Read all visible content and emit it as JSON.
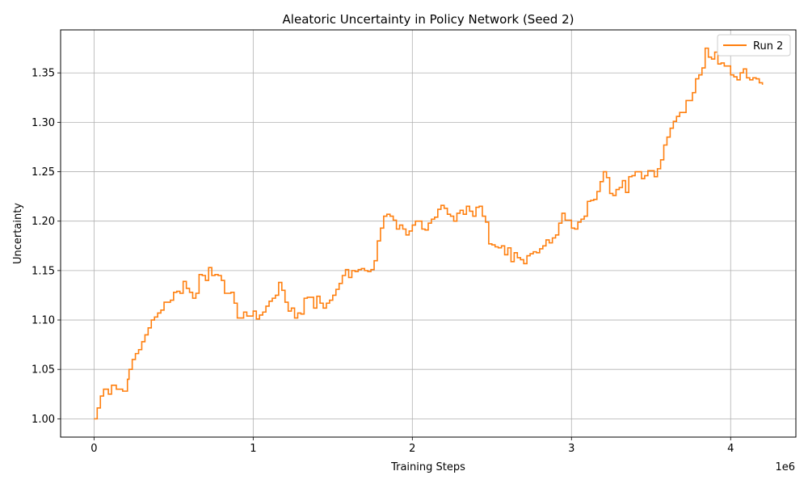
{
  "chart_data": {
    "type": "line",
    "title": "Aleatoric Uncertainty in Policy Network (Seed 2)",
    "xlabel": "Training Steps",
    "ylabel": "Uncertainty",
    "x_offset_label": "1e6",
    "xlim": [
      -210000,
      4410000
    ],
    "ylim": [
      0.9815,
      1.3935
    ],
    "x_ticks": [
      {
        "value": 0,
        "label": "0"
      },
      {
        "value": 1000000,
        "label": "1"
      },
      {
        "value": 2000000,
        "label": "2"
      },
      {
        "value": 3000000,
        "label": "3"
      },
      {
        "value": 4000000,
        "label": "4"
      }
    ],
    "y_ticks": [
      {
        "value": 1.0,
        "label": "1.00"
      },
      {
        "value": 1.05,
        "label": "1.05"
      },
      {
        "value": 1.1,
        "label": "1.10"
      },
      {
        "value": 1.15,
        "label": "1.15"
      },
      {
        "value": 1.2,
        "label": "1.20"
      },
      {
        "value": 1.25,
        "label": "1.25"
      },
      {
        "value": 1.3,
        "label": "1.30"
      },
      {
        "value": 1.35,
        "label": "1.35"
      }
    ],
    "grid": true,
    "legend_position": "top-right",
    "series": [
      {
        "name": "Run 2",
        "color": "#ff7f0e",
        "step": true,
        "x": [
          0,
          20000,
          40000,
          60000,
          90000,
          110000,
          140000,
          160000,
          180000,
          200000,
          210000,
          220000,
          240000,
          260000,
          280000,
          300000,
          320000,
          340000,
          360000,
          380000,
          400000,
          420000,
          440000,
          460000,
          480000,
          500000,
          520000,
          540000,
          560000,
          580000,
          600000,
          620000,
          640000,
          660000,
          680000,
          700000,
          720000,
          740000,
          760000,
          780000,
          800000,
          820000,
          840000,
          860000,
          880000,
          900000,
          940000,
          960000,
          980000,
          1000000,
          1020000,
          1040000,
          1060000,
          1080000,
          1100000,
          1120000,
          1140000,
          1160000,
          1180000,
          1200000,
          1220000,
          1240000,
          1260000,
          1280000,
          1300000,
          1320000,
          1340000,
          1380000,
          1400000,
          1420000,
          1440000,
          1460000,
          1480000,
          1500000,
          1520000,
          1540000,
          1560000,
          1580000,
          1600000,
          1620000,
          1640000,
          1660000,
          1680000,
          1700000,
          1720000,
          1740000,
          1760000,
          1780000,
          1800000,
          1820000,
          1840000,
          1860000,
          1880000,
          1900000,
          1920000,
          1940000,
          1960000,
          1980000,
          2000000,
          2020000,
          2060000,
          2080000,
          2100000,
          2120000,
          2140000,
          2160000,
          2180000,
          2200000,
          2220000,
          2240000,
          2260000,
          2280000,
          2300000,
          2320000,
          2340000,
          2360000,
          2380000,
          2400000,
          2420000,
          2440000,
          2460000,
          2480000,
          2500000,
          2520000,
          2540000,
          2560000,
          2580000,
          2600000,
          2620000,
          2640000,
          2660000,
          2680000,
          2700000,
          2720000,
          2740000,
          2760000,
          2780000,
          2800000,
          2820000,
          2840000,
          2860000,
          2880000,
          2900000,
          2920000,
          2940000,
          2960000,
          2980000,
          3000000,
          3020000,
          3040000,
          3060000,
          3080000,
          3100000,
          3120000,
          3140000,
          3160000,
          3180000,
          3200000,
          3220000,
          3240000,
          3260000,
          3280000,
          3300000,
          3320000,
          3340000,
          3360000,
          3380000,
          3400000,
          3420000,
          3440000,
          3460000,
          3480000,
          3500000,
          3520000,
          3540000,
          3560000,
          3580000,
          3600000,
          3620000,
          3640000,
          3660000,
          3680000,
          3700000,
          3720000,
          3740000,
          3760000,
          3780000,
          3800000,
          3820000,
          3840000,
          3860000,
          3880000,
          3900000,
          3920000,
          3940000,
          3960000,
          3980000,
          4000000,
          4020000,
          4040000,
          4060000,
          4080000,
          4100000,
          4120000,
          4140000,
          4160000,
          4180000,
          4200000
        ],
        "y": [
          1.0,
          1.011,
          1.023,
          1.03,
          1.025,
          1.034,
          1.03,
          1.03,
          1.028,
          1.028,
          1.04,
          1.05,
          1.06,
          1.066,
          1.07,
          1.078,
          1.085,
          1.092,
          1.1,
          1.103,
          1.107,
          1.11,
          1.118,
          1.118,
          1.12,
          1.128,
          1.129,
          1.127,
          1.139,
          1.132,
          1.128,
          1.122,
          1.127,
          1.146,
          1.145,
          1.14,
          1.153,
          1.145,
          1.146,
          1.145,
          1.14,
          1.127,
          1.127,
          1.128,
          1.117,
          1.102,
          1.108,
          1.104,
          1.104,
          1.109,
          1.101,
          1.105,
          1.108,
          1.114,
          1.119,
          1.122,
          1.125,
          1.138,
          1.13,
          1.118,
          1.109,
          1.112,
          1.102,
          1.107,
          1.106,
          1.122,
          1.123,
          1.112,
          1.124,
          1.117,
          1.112,
          1.117,
          1.12,
          1.125,
          1.131,
          1.137,
          1.145,
          1.151,
          1.143,
          1.15,
          1.149,
          1.151,
          1.152,
          1.15,
          1.149,
          1.151,
          1.16,
          1.18,
          1.193,
          1.205,
          1.207,
          1.205,
          1.201,
          1.192,
          1.196,
          1.192,
          1.186,
          1.19,
          1.196,
          1.2,
          1.192,
          1.191,
          1.198,
          1.202,
          1.204,
          1.212,
          1.216,
          1.213,
          1.207,
          1.205,
          1.2,
          1.208,
          1.211,
          1.207,
          1.215,
          1.21,
          1.205,
          1.214,
          1.215,
          1.205,
          1.199,
          1.177,
          1.176,
          1.174,
          1.173,
          1.175,
          1.166,
          1.173,
          1.159,
          1.168,
          1.163,
          1.161,
          1.157,
          1.165,
          1.167,
          1.169,
          1.168,
          1.172,
          1.175,
          1.181,
          1.178,
          1.183,
          1.186,
          1.198,
          1.208,
          1.201,
          1.201,
          1.193,
          1.192,
          1.199,
          1.202,
          1.205,
          1.22,
          1.221,
          1.222,
          1.23,
          1.24,
          1.25,
          1.244,
          1.228,
          1.226,
          1.232,
          1.234,
          1.241,
          1.229,
          1.245,
          1.246,
          1.25,
          1.25,
          1.243,
          1.246,
          1.251,
          1.251,
          1.245,
          1.253,
          1.262,
          1.277,
          1.285,
          1.294,
          1.301,
          1.306,
          1.31,
          1.31,
          1.322,
          1.322,
          1.33,
          1.344,
          1.348,
          1.355,
          1.375,
          1.366,
          1.364,
          1.371,
          1.359,
          1.36,
          1.357,
          1.357,
          1.348,
          1.346,
          1.343,
          1.35,
          1.354,
          1.345,
          1.343,
          1.345,
          1.344,
          1.34,
          1.338
        ]
      }
    ]
  }
}
